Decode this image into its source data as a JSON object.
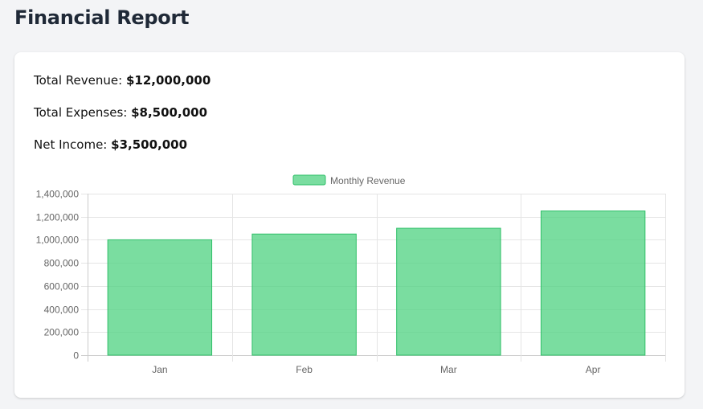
{
  "page": {
    "title": "Financial Report"
  },
  "stats": {
    "revenue": {
      "label": "Total Revenue:",
      "value": "$12,000,000"
    },
    "expenses": {
      "label": "Total Expenses:",
      "value": "$8,500,000"
    },
    "net": {
      "label": "Net Income:",
      "value": "$3,500,000"
    }
  },
  "chart_data": {
    "type": "bar",
    "title": "",
    "xlabel": "",
    "ylabel": "",
    "categories": [
      "Jan",
      "Feb",
      "Mar",
      "Apr"
    ],
    "series": [
      {
        "name": "Monthly Revenue",
        "values": [
          1000000,
          1050000,
          1100000,
          1250000
        ]
      }
    ],
    "ylim": [
      0,
      1400000
    ],
    "yticks": [
      "0",
      "200,000",
      "400,000",
      "600,000",
      "800,000",
      "1,000,000",
      "1,200,000",
      "1,400,000"
    ],
    "legend_position": "top",
    "grid": true,
    "colors": {
      "bar_fill": "#4ed280",
      "bar_stroke": "#2fbf68"
    }
  }
}
